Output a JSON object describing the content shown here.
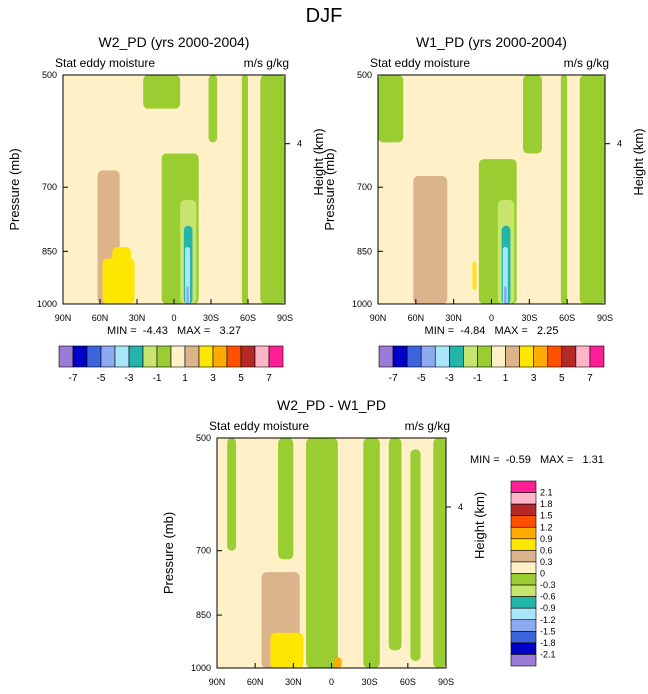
{
  "figure_title": "DJF",
  "chart_data": [
    {
      "type": "heatmap",
      "title": "W2_PD (yrs 2000-2004)",
      "left_label": "Stat eddy moisture",
      "right_label": "m/s g/kg",
      "ylabel": "Pressure (mb)",
      "ylabel_right": "Height (km)",
      "y_ticks": [
        "500",
        "700",
        "850",
        "1000"
      ],
      "y_right_ticks": [
        "4"
      ],
      "x_ticks": [
        "90N",
        "60N",
        "30N",
        "0",
        "30S",
        "60S",
        "90S"
      ],
      "stats": "MIN =  -4.43   MAX =   3.27",
      "colorbar_labels": [
        "-7",
        "-5",
        "-3",
        "-1",
        "1",
        "3",
        "5",
        "7"
      ],
      "bands": [
        {
          "color": "#FFF0C8",
          "lat": [
            -90,
            90
          ],
          "p": [
            500,
            1000
          ]
        },
        {
          "color": "#9ACD32",
          "lat": [
            -90,
            -70
          ],
          "p": [
            500,
            1000
          ]
        },
        {
          "color": "#9ACD32",
          "lat": [
            -60,
            -55
          ],
          "p": [
            500,
            1000
          ]
        },
        {
          "color": "#9ACD32",
          "lat": [
            -35,
            -28
          ],
          "p": [
            500,
            620
          ]
        },
        {
          "color": "#9ACD32",
          "lat": [
            -5,
            25
          ],
          "p": [
            500,
            560
          ]
        },
        {
          "color": "#9ACD32",
          "lat": [
            -20,
            10
          ],
          "p": [
            640,
            1000
          ]
        },
        {
          "color": "#9ACD32",
          "lat": [
            -90,
            -80
          ],
          "p": [
            550,
            1000
          ]
        },
        {
          "color": "#C8E66E",
          "lat": [
            -18,
            -5
          ],
          "p": [
            730,
            1000
          ]
        },
        {
          "color": "#23B4AA",
          "lat": [
            -15,
            -8
          ],
          "p": [
            790,
            1000
          ]
        },
        {
          "color": "#AAE6FA",
          "lat": [
            -13,
            -9
          ],
          "p": [
            840,
            1000
          ]
        },
        {
          "color": "#8CAAF0",
          "lat": [
            -12,
            -10
          ],
          "p": [
            950,
            1000
          ]
        },
        {
          "color": "#DCB48C",
          "lat": [
            44,
            62
          ],
          "p": [
            670,
            1000
          ]
        },
        {
          "color": "#DCB48C",
          "lat": [
            35,
            48
          ],
          "p": [
            900,
            1000
          ]
        },
        {
          "color": "#FFE600",
          "lat": [
            32,
            58
          ],
          "p": [
            870,
            1000
          ]
        },
        {
          "color": "#FFE600",
          "lat": [
            35,
            50
          ],
          "p": [
            840,
            900
          ]
        }
      ]
    },
    {
      "type": "heatmap",
      "title": "W1_PD (yrs 2000-2004)",
      "left_label": "Stat eddy moisture",
      "right_label": "m/s g/kg",
      "ylabel": "Pressure (mb)",
      "ylabel_right": "Height (km)",
      "y_ticks": [
        "500",
        "700",
        "850",
        "1000"
      ],
      "y_right_ticks": [
        "4"
      ],
      "x_ticks": [
        "90N",
        "60N",
        "30N",
        "0",
        "30S",
        "60S",
        "90S"
      ],
      "stats": "MIN =  -4.84   MAX =   2.25",
      "colorbar_labels": [
        "-7",
        "-5",
        "-3",
        "-1",
        "1",
        "3",
        "5",
        "7"
      ],
      "bands": [
        {
          "color": "#FFF0C8",
          "lat": [
            -90,
            90
          ],
          "p": [
            500,
            1000
          ]
        },
        {
          "color": "#9ACD32",
          "lat": [
            -90,
            -70
          ],
          "p": [
            500,
            1000
          ]
        },
        {
          "color": "#9ACD32",
          "lat": [
            -60,
            -55
          ],
          "p": [
            500,
            1000
          ]
        },
        {
          "color": "#9ACD32",
          "lat": [
            -40,
            -25
          ],
          "p": [
            500,
            640
          ]
        },
        {
          "color": "#9ACD32",
          "lat": [
            70,
            90
          ],
          "p": [
            500,
            620
          ]
        },
        {
          "color": "#9ACD32",
          "lat": [
            -20,
            10
          ],
          "p": [
            650,
            1000
          ]
        },
        {
          "color": "#C8E66E",
          "lat": [
            -18,
            -5
          ],
          "p": [
            730,
            1000
          ]
        },
        {
          "color": "#23B4AA",
          "lat": [
            -15,
            -8
          ],
          "p": [
            790,
            1000
          ]
        },
        {
          "color": "#AAE6FA",
          "lat": [
            -13,
            -9
          ],
          "p": [
            840,
            1000
          ]
        },
        {
          "color": "#8CAAF0",
          "lat": [
            -12,
            -10
          ],
          "p": [
            950,
            1000
          ]
        },
        {
          "color": "#DCB48C",
          "lat": [
            35,
            62
          ],
          "p": [
            680,
            1000
          ]
        },
        {
          "color": "#FFE600",
          "lat": [
            12,
            15
          ],
          "p": [
            880,
            960
          ]
        }
      ]
    },
    {
      "type": "heatmap",
      "title": "W2_PD - W1_PD",
      "left_label": "Stat eddy moisture",
      "right_label": "m/s g/kg",
      "ylabel": "Pressure (mb)",
      "ylabel_right": "Height (km)",
      "y_ticks": [
        "500",
        "700",
        "850",
        "1000"
      ],
      "y_right_ticks": [
        "4"
      ],
      "x_ticks": [
        "90N",
        "60N",
        "30N",
        "0",
        "30S",
        "60S",
        "90S"
      ],
      "stats": "MIN =  -0.59   MAX =   1.31",
      "colorbar_labels": [
        "2.1",
        "1.8",
        "1.5",
        "1.2",
        "0.9",
        "0.6",
        "0.3",
        "0",
        "-0.3",
        "-0.6",
        "-0.9",
        "-1.2",
        "-1.5",
        "-1.8",
        "-2.1"
      ],
      "bands": [
        {
          "color": "#FFF0C8",
          "lat": [
            -90,
            90
          ],
          "p": [
            500,
            1000
          ]
        },
        {
          "color": "#9ACD32",
          "lat": [
            75,
            82
          ],
          "p": [
            500,
            700
          ]
        },
        {
          "color": "#9ACD32",
          "lat": [
            30,
            42
          ],
          "p": [
            500,
            720
          ]
        },
        {
          "color": "#9ACD32",
          "lat": [
            -5,
            20
          ],
          "p": [
            500,
            1000
          ]
        },
        {
          "color": "#9ACD32",
          "lat": [
            -38,
            -25
          ],
          "p": [
            500,
            1000
          ]
        },
        {
          "color": "#9ACD32",
          "lat": [
            -55,
            -45
          ],
          "p": [
            500,
            950
          ]
        },
        {
          "color": "#9ACD32",
          "lat": [
            -70,
            -62
          ],
          "p": [
            520,
            980
          ]
        },
        {
          "color": "#9ACD32",
          "lat": [
            -90,
            -80
          ],
          "p": [
            500,
            1000
          ]
        },
        {
          "color": "#DCB48C",
          "lat": [
            25,
            55
          ],
          "p": [
            750,
            1000
          ]
        },
        {
          "color": "#FFE600",
          "lat": [
            22,
            48
          ],
          "p": [
            900,
            1000
          ]
        },
        {
          "color": "#FFAA00",
          "lat": [
            -8,
            -2
          ],
          "p": [
            970,
            1000
          ]
        }
      ]
    }
  ],
  "colormap": [
    "#9B7BD8",
    "#0000C8",
    "#3C64DC",
    "#8CAAF0",
    "#AAE6FA",
    "#23B4AA",
    "#C8E66E",
    "#9ACD32",
    "#FFF0C8",
    "#DCB48C",
    "#FFE600",
    "#FFAA00",
    "#FF5000",
    "#B42828",
    "#FFB4C8",
    "#FF1E96"
  ]
}
